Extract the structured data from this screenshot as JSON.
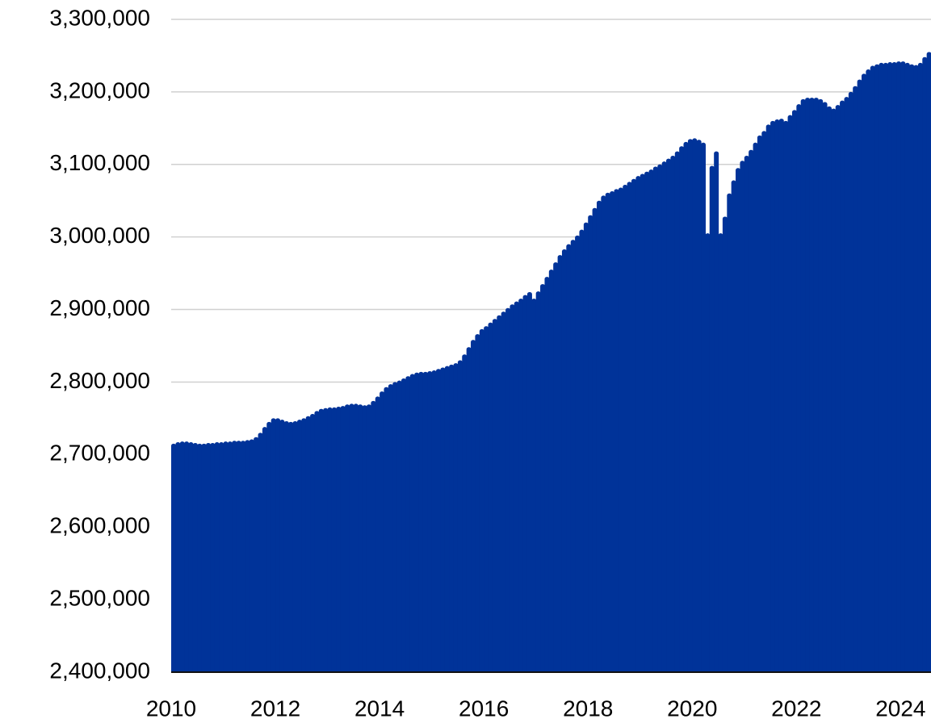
{
  "chart_data": {
    "type": "bar",
    "color": "#003399",
    "grid": true,
    "xlim": [
      2010,
      2024.583
    ],
    "xticks": [
      2010,
      2012,
      2014,
      2016,
      2018,
      2020,
      2022,
      2024
    ],
    "ylim": [
      2400000,
      3300000
    ],
    "yticks": [
      {
        "value": 2400000,
        "label": "2,400,000"
      },
      {
        "value": 2500000,
        "label": "2,500,000"
      },
      {
        "value": 2600000,
        "label": "2,600,000"
      },
      {
        "value": 2700000,
        "label": "2,700,000"
      },
      {
        "value": 2800000,
        "label": "2,800,000"
      },
      {
        "value": 2900000,
        "label": "2,900,000"
      },
      {
        "value": 3000000,
        "label": "3,000,000"
      },
      {
        "value": 3100000,
        "label": "3,100,000"
      },
      {
        "value": 3200000,
        "label": "3,200,000"
      },
      {
        "value": 3300000,
        "label": "3,300,000"
      }
    ],
    "x": [
      2010,
      2010.083,
      2010.167,
      2010.25,
      2010.333,
      2010.417,
      2010.5,
      2010.583,
      2010.667,
      2010.75,
      2010.833,
      2010.917,
      2011,
      2011.083,
      2011.167,
      2011.25,
      2011.333,
      2011.417,
      2011.5,
      2011.583,
      2011.667,
      2011.75,
      2011.833,
      2011.917,
      2012,
      2012.083,
      2012.167,
      2012.25,
      2012.333,
      2012.417,
      2012.5,
      2012.583,
      2012.667,
      2012.75,
      2012.833,
      2012.917,
      2013,
      2013.083,
      2013.167,
      2013.25,
      2013.333,
      2013.417,
      2013.5,
      2013.583,
      2013.667,
      2013.75,
      2013.833,
      2013.917,
      2014,
      2014.083,
      2014.167,
      2014.25,
      2014.333,
      2014.417,
      2014.5,
      2014.583,
      2014.667,
      2014.75,
      2014.833,
      2014.917,
      2015,
      2015.083,
      2015.167,
      2015.25,
      2015.333,
      2015.417,
      2015.5,
      2015.583,
      2015.667,
      2015.75,
      2015.833,
      2015.917,
      2016,
      2016.083,
      2016.167,
      2016.25,
      2016.333,
      2016.417,
      2016.5,
      2016.583,
      2016.667,
      2016.75,
      2016.833,
      2016.917,
      2017,
      2017.083,
      2017.167,
      2017.25,
      2017.333,
      2017.417,
      2017.5,
      2017.583,
      2017.667,
      2017.75,
      2017.833,
      2017.917,
      2018,
      2018.083,
      2018.167,
      2018.25,
      2018.333,
      2018.417,
      2018.5,
      2018.583,
      2018.667,
      2018.75,
      2018.833,
      2018.917,
      2019,
      2019.083,
      2019.167,
      2019.25,
      2019.333,
      2019.417,
      2019.5,
      2019.583,
      2019.667,
      2019.75,
      2019.833,
      2019.917,
      2020,
      2020.083,
      2020.167,
      2020.25,
      2020.333,
      2020.417,
      2020.5,
      2020.583,
      2020.667,
      2020.75,
      2020.833,
      2020.917,
      2021,
      2021.083,
      2021.167,
      2021.25,
      2021.333,
      2021.417,
      2021.5,
      2021.583,
      2021.667,
      2021.75,
      2021.833,
      2021.917,
      2022,
      2022.083,
      2022.167,
      2022.25,
      2022.333,
      2022.417,
      2022.5,
      2022.583,
      2022.667,
      2022.75,
      2022.833,
      2022.917,
      2023,
      2023.083,
      2023.167,
      2023.25,
      2023.333,
      2023.417,
      2023.5,
      2023.583,
      2023.667,
      2023.75,
      2023.833,
      2023.917,
      2024,
      2024.083,
      2024.167,
      2024.25,
      2024.333,
      2024.417,
      2024.5
    ],
    "values": [
      2715000,
      2717000,
      2718000,
      2718000,
      2717000,
      2716000,
      2715000,
      2715000,
      2716000,
      2716000,
      2717000,
      2717000,
      2718000,
      2718000,
      2719000,
      2719000,
      2719000,
      2720000,
      2721000,
      2724000,
      2730000,
      2738000,
      2745000,
      2750000,
      2750000,
      2748000,
      2746000,
      2745000,
      2746000,
      2748000,
      2750000,
      2753000,
      2756000,
      2760000,
      2763000,
      2764000,
      2765000,
      2765000,
      2766000,
      2767000,
      2769000,
      2770000,
      2770000,
      2769000,
      2768000,
      2769000,
      2774000,
      2780000,
      2787000,
      2793000,
      2797000,
      2800000,
      2802000,
      2805000,
      2808000,
      2811000,
      2813000,
      2814000,
      2814000,
      2815000,
      2816000,
      2818000,
      2820000,
      2822000,
      2824000,
      2826000,
      2830000,
      2838000,
      2848000,
      2858000,
      2866000,
      2873000,
      2877000,
      2882000,
      2887000,
      2892000,
      2897000,
      2902000,
      2907000,
      2911000,
      2915000,
      2920000,
      2924000,
      2915000,
      2925000,
      2935000,
      2945000,
      2955000,
      2965000,
      2975000,
      2983000,
      2990000,
      2996000,
      3002000,
      3010000,
      3020000,
      3030000,
      3040000,
      3050000,
      3057000,
      3061000,
      3063000,
      3066000,
      3068000,
      3072000,
      3076000,
      3080000,
      3084000,
      3087000,
      3090000,
      3093000,
      3097000,
      3100000,
      3104000,
      3108000,
      3112000,
      3118000,
      3125000,
      3131000,
      3135000,
      3136000,
      3134000,
      3130000,
      3005000,
      3098000,
      3118000,
      3005000,
      3028000,
      3060000,
      3078000,
      3095000,
      3105000,
      3112000,
      3120000,
      3130000,
      3140000,
      3146000,
      3155000,
      3160000,
      3162000,
      3163000,
      3160000,
      3168000,
      3175000,
      3183000,
      3190000,
      3192000,
      3192000,
      3192000,
      3190000,
      3186000,
      3180000,
      3177000,
      3182000,
      3188000,
      3193000,
      3200000,
      3208000,
      3217000,
      3225000,
      3231000,
      3236000,
      3238000,
      3240000,
      3240000,
      3241000,
      3241000,
      3242000,
      3242000,
      3240000,
      3238000,
      3237000,
      3240000,
      3248000,
      3255000
    ]
  }
}
